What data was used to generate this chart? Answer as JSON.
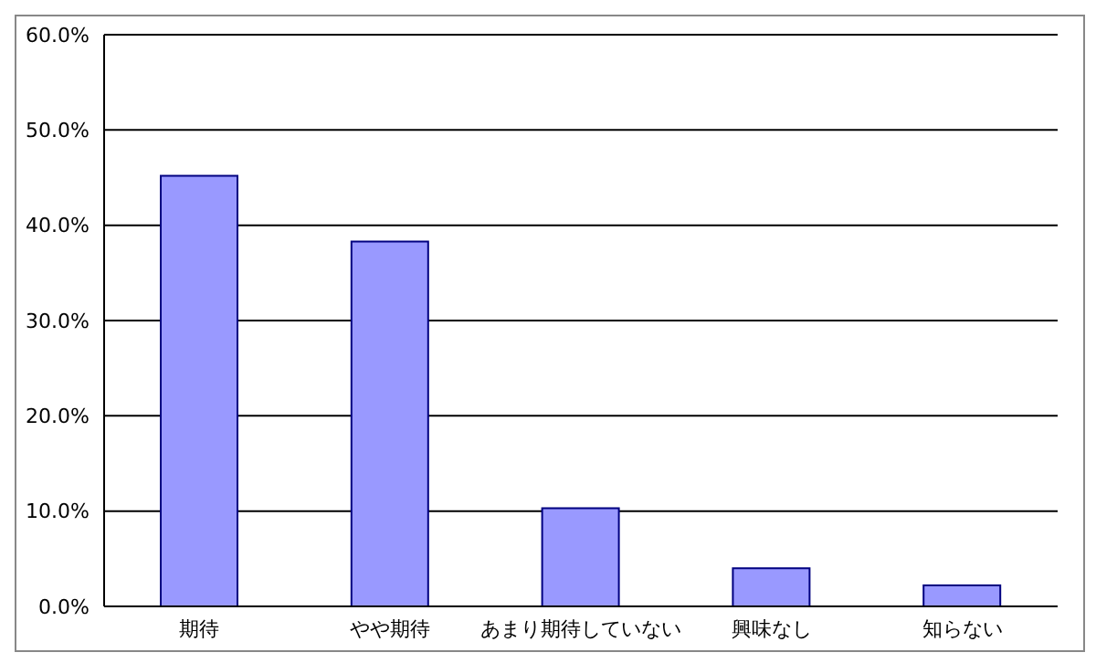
{
  "chart_data": {
    "type": "bar",
    "categories": [
      "期待",
      "やや期待",
      "あまり期待していない",
      "興味なし",
      "知らない"
    ],
    "values": [
      45.2,
      38.3,
      10.3,
      4.0,
      2.2
    ],
    "color": "#9999ff",
    "ylim": [
      0,
      60
    ],
    "yticks": [
      {
        "value": 0,
        "label": "0.0%"
      },
      {
        "value": 10,
        "label": "10.0%"
      },
      {
        "value": 20,
        "label": "20.0%"
      },
      {
        "value": 30,
        "label": "30.0%"
      },
      {
        "value": 40,
        "label": "40.0%"
      },
      {
        "value": 50,
        "label": "50.0%"
      },
      {
        "value": 60,
        "label": "60.0%"
      }
    ],
    "grid": "y"
  }
}
